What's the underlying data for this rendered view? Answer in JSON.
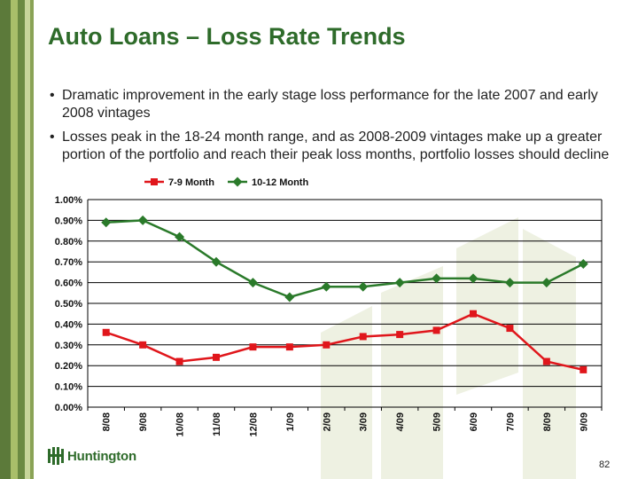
{
  "title": "Auto Loans – Loss Rate Trends",
  "bullets": [
    "Dramatic improvement in the early stage loss performance for the late 2007 and early 2008 vintages",
    "Losses peak in the 18-24 month range, and as 2008-2009 vintages make up a greater portion of the portfolio and reach their peak loss months, portfolio losses should decline"
  ],
  "bullet_glyph": "•",
  "logo_text": "Huntington",
  "page_number": "82",
  "colors": {
    "title": "#2e6b2a",
    "series_red": "#e0161b",
    "series_green": "#2a7a2a"
  },
  "chart_data": {
    "type": "line",
    "categories": [
      "8/08",
      "9/08",
      "10/08",
      "11/08",
      "12/08",
      "1/09",
      "2/09",
      "3/09",
      "4/09",
      "5/09",
      "6/09",
      "7/09",
      "8/09",
      "9/09"
    ],
    "series": [
      {
        "name": "7-9 Month",
        "color": "#e0161b",
        "marker": "square",
        "values": [
          0.36,
          0.3,
          0.22,
          0.24,
          0.29,
          0.29,
          0.3,
          0.34,
          0.35,
          0.37,
          0.45,
          0.38,
          0.22,
          0.18
        ]
      },
      {
        "name": "10-12 Month",
        "color": "#2a7a2a",
        "marker": "diamond",
        "values": [
          0.89,
          0.9,
          0.82,
          0.7,
          0.6,
          0.53,
          0.58,
          0.58,
          0.6,
          0.62,
          0.62,
          0.6,
          0.6,
          0.69
        ]
      }
    ],
    "ylim": [
      0,
      1.0
    ],
    "yticks": [
      "0.00%",
      "0.10%",
      "0.20%",
      "0.30%",
      "0.40%",
      "0.50%",
      "0.60%",
      "0.70%",
      "0.80%",
      "0.90%",
      "1.00%"
    ],
    "grid": true,
    "legend": "top-center"
  }
}
